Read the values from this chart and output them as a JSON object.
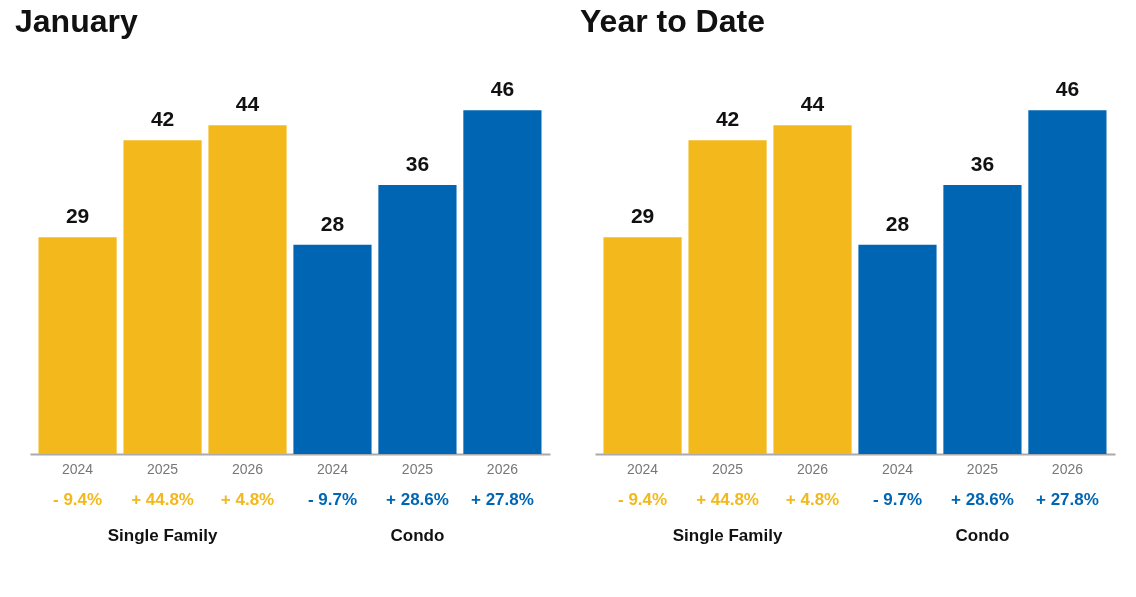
{
  "chart_data": [
    {
      "type": "bar",
      "title": "January",
      "categories": [
        "2024",
        "2025",
        "2026",
        "2024",
        "2025",
        "2026"
      ],
      "values": [
        29,
        42,
        44,
        28,
        36,
        46
      ],
      "colors": [
        "#f2b81c",
        "#f2b81c",
        "#f2b81c",
        "#0066b3",
        "#0066b3",
        "#0066b3"
      ],
      "data_labels": true,
      "annotations": [
        "- 9.4%",
        "+ 44.8%",
        "+ 4.8%",
        "- 9.7%",
        "+ 28.6%",
        "+ 27.8%",
        "Single Family",
        "Condo"
      ]
    },
    {
      "type": "bar",
      "title": "Year to Date",
      "categories": [
        "2024",
        "2025",
        "2026",
        "2024",
        "2025",
        "2026"
      ],
      "values": [
        29,
        42,
        44,
        28,
        36,
        46
      ],
      "colors": [
        "#f2b81c",
        "#f2b81c",
        "#f2b81c",
        "#0066b3",
        "#0066b3",
        "#0066b3"
      ],
      "data_labels": true,
      "annotations": [
        "- 9.4%",
        "+ 44.8%",
        "+ 4.8%",
        "- 9.7%",
        "+ 28.6%",
        "+ 27.8%",
        "Single Family",
        "Condo"
      ]
    }
  ]
}
